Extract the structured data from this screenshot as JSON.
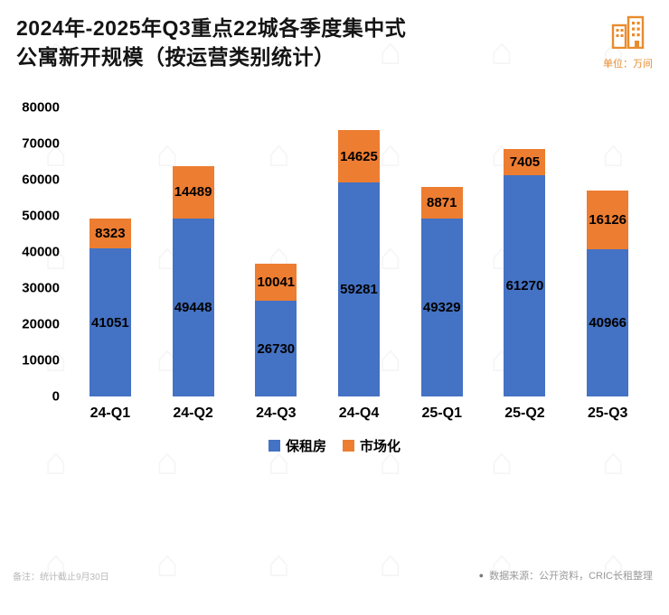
{
  "header": {
    "title_line1": "2024年-2025年Q3重点22城各季度集中式",
    "title_line2": "公寓新开规模（按运营类别统计）",
    "unit_label": "单位：万间"
  },
  "chart_data": {
    "type": "bar",
    "stacked": true,
    "categories": [
      "24-Q1",
      "24-Q2",
      "24-Q3",
      "24-Q4",
      "25-Q1",
      "25-Q2",
      "25-Q3"
    ],
    "series": [
      {
        "name": "保租房",
        "color": "#4472c4",
        "values": [
          41051,
          49448,
          26730,
          59281,
          49329,
          61270,
          40966
        ]
      },
      {
        "name": "市场化",
        "color": "#ed7d31",
        "values": [
          8323,
          14489,
          10041,
          14625,
          8871,
          7405,
          16126
        ]
      }
    ],
    "ylim": [
      0,
      80000
    ],
    "ytick_step": 10000,
    "grid": false,
    "legend_position": "bottom"
  },
  "footer": {
    "note": "备注：统计截止9月30日",
    "bullet": "●",
    "source": "数据来源：公开资料，CRIC长租整理"
  },
  "icons": {
    "watermark_glyph": "⌂"
  }
}
